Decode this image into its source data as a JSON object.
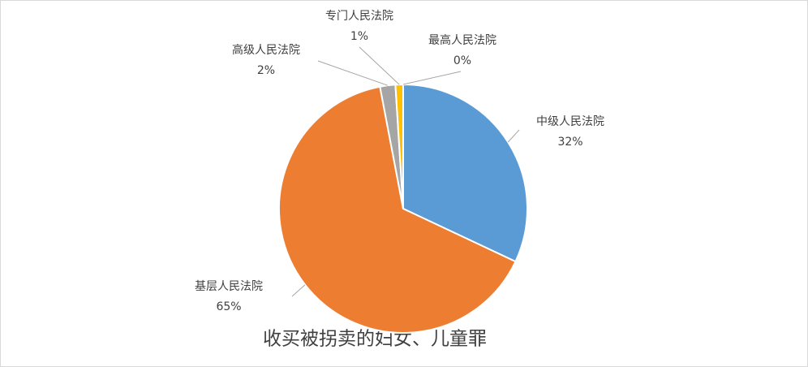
{
  "chart_data": {
    "type": "pie",
    "title": "收买被拐卖的妇女、儿童罪",
    "categories": [
      "中级人民法院",
      "基层人民法院",
      "高级人民法院",
      "专门人民法院",
      "最高人民法院"
    ],
    "values": [
      32,
      65,
      2,
      1,
      0
    ],
    "value_labels": [
      "32%",
      "65%",
      "2%",
      "1%",
      "0%"
    ],
    "colors": [
      "#5b9bd5",
      "#ed7d31",
      "#a5a5a5",
      "#ffc000",
      "#4472c4"
    ]
  }
}
